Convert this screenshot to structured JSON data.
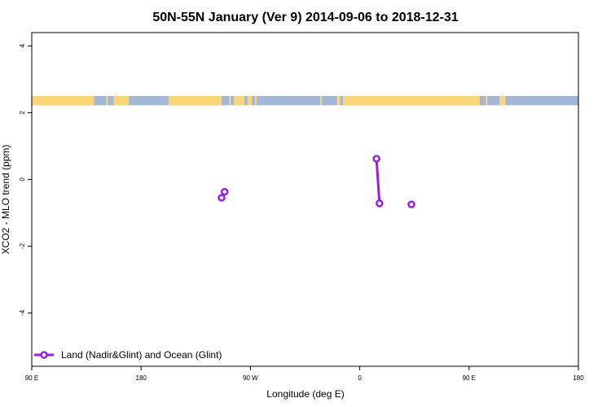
{
  "chart_data": {
    "type": "line",
    "title": "50N-55N January (Ver 9)   2014-09-06 to 2018-12-31",
    "xlabel": "Longitude (deg E)",
    "ylabel": "XCO2 - MLO trend (ppm)",
    "xlim": [
      -90,
      270
    ],
    "ylim": [
      -5.6,
      4.4
    ],
    "x_ticks": [
      {
        "value": -90,
        "label": "90 E"
      },
      {
        "value": -18,
        "label": "180"
      },
      {
        "value": 54,
        "label": "90 W"
      },
      {
        "value": 126,
        "label": "0"
      },
      {
        "value": 198,
        "label": "90 E"
      },
      {
        "value": 270,
        "label": "180"
      }
    ],
    "y_ticks": [
      {
        "value": 4,
        "label": "4"
      },
      {
        "value": 2,
        "label": "2"
      },
      {
        "value": 0,
        "label": "0"
      },
      {
        "value": -2,
        "label": "-2"
      },
      {
        "value": -4,
        "label": "-4"
      }
    ],
    "grid": false,
    "legend_position": "bottom-left",
    "series": [
      {
        "name": "Land (Nadir&Glint) and Ocean (Glint)",
        "color": "#9a1ee6",
        "segments": [
          [
            {
              "x": 35,
              "y": -0.55
            },
            {
              "x": 37,
              "y": -0.37
            }
          ],
          [
            {
              "x": 137,
              "y": 0.62
            },
            {
              "x": 139,
              "y": -0.72
            }
          ],
          [
            {
              "x": 160,
              "y": -0.75
            }
          ]
        ]
      }
    ],
    "landmask_strip": {
      "y_range": [
        2.22,
        2.5
      ],
      "ocean_color": "#a3b8d9",
      "land_color": "#fcd57a",
      "land_x_ranges": [
        [
          -90,
          -49
        ],
        [
          -41,
          -41
        ],
        [
          -36,
          -26
        ],
        [
          0,
          35
        ],
        [
          40,
          41
        ],
        [
          43,
          50
        ],
        [
          52,
          55
        ],
        [
          57,
          57
        ],
        [
          100,
          100
        ],
        [
          111,
          113
        ],
        [
          115,
          205
        ],
        [
          209,
          209
        ],
        [
          218,
          222
        ]
      ]
    }
  }
}
